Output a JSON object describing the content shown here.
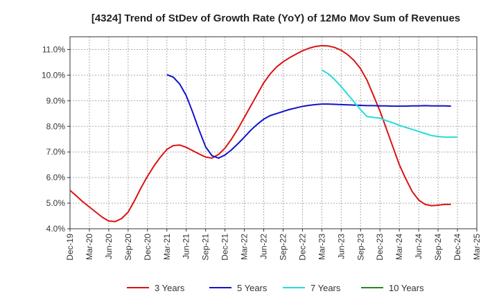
{
  "chart_data": {
    "type": "line",
    "title": "[4324]  Trend of StDev of Growth Rate (YoY) of 12Mo Mov Sum of Revenues",
    "xlabel": "",
    "ylabel": "",
    "ylim": [
      4.0,
      11.5
    ],
    "yticks": [
      4.0,
      5.0,
      6.0,
      7.0,
      8.0,
      9.0,
      10.0,
      11.0
    ],
    "ytick_labels": [
      "4.0%",
      "5.0%",
      "6.0%",
      "7.0%",
      "8.0%",
      "9.0%",
      "10.0%",
      "11.0%"
    ],
    "x_months": [
      "Dec-19",
      "Jan-20",
      "Feb-20",
      "Mar-20",
      "Apr-20",
      "May-20",
      "Jun-20",
      "Jul-20",
      "Aug-20",
      "Sep-20",
      "Oct-20",
      "Nov-20",
      "Dec-20",
      "Jan-21",
      "Feb-21",
      "Mar-21",
      "Apr-21",
      "May-21",
      "Jun-21",
      "Jul-21",
      "Aug-21",
      "Sep-21",
      "Oct-21",
      "Nov-21",
      "Dec-21",
      "Jan-22",
      "Feb-22",
      "Mar-22",
      "Apr-22",
      "May-22",
      "Jun-22",
      "Jul-22",
      "Aug-22",
      "Sep-22",
      "Oct-22",
      "Nov-22",
      "Dec-22",
      "Jan-23",
      "Feb-23",
      "Mar-23",
      "Apr-23",
      "May-23",
      "Jun-23",
      "Jul-23",
      "Aug-23",
      "Sep-23",
      "Oct-23",
      "Nov-23",
      "Dec-23",
      "Jan-24",
      "Feb-24",
      "Mar-24",
      "Apr-24",
      "May-24",
      "Jun-24",
      "Jul-24",
      "Aug-24",
      "Sep-24",
      "Oct-24",
      "Nov-24",
      "Dec-24",
      "Jan-25",
      "Feb-25",
      "Mar-25"
    ],
    "xtick_labels": [
      "Dec-19",
      "Mar-20",
      "Jun-20",
      "Sep-20",
      "Dec-20",
      "Mar-21",
      "Jun-21",
      "Sep-21",
      "Dec-21",
      "Mar-22",
      "Jun-22",
      "Sep-22",
      "Dec-22",
      "Mar-23",
      "Jun-23",
      "Sep-23",
      "Dec-23",
      "Mar-24",
      "Jun-24",
      "Sep-24",
      "Dec-24",
      "Mar-25"
    ],
    "grid": true,
    "legend_position": "bottom",
    "series": [
      {
        "name": "3 Years",
        "color": "#dd1111",
        "start_index": 0,
        "values": [
          5.5,
          5.28,
          5.05,
          4.85,
          4.65,
          4.45,
          4.3,
          4.28,
          4.4,
          4.65,
          5.1,
          5.6,
          6.05,
          6.45,
          6.8,
          7.1,
          7.25,
          7.27,
          7.18,
          7.05,
          6.92,
          6.8,
          6.76,
          6.9,
          7.15,
          7.5,
          7.9,
          8.35,
          8.8,
          9.25,
          9.7,
          10.05,
          10.32,
          10.52,
          10.68,
          10.82,
          10.95,
          11.05,
          11.12,
          11.15,
          11.14,
          11.08,
          10.97,
          10.8,
          10.57,
          10.25,
          9.8,
          9.2,
          8.6,
          7.9,
          7.2,
          6.5,
          5.95,
          5.45,
          5.12,
          4.95,
          4.9,
          4.92,
          4.95,
          4.95
        ]
      },
      {
        "name": "5 Years",
        "color": "#1111cc",
        "start_index": 15,
        "values": [
          10.02,
          9.92,
          9.65,
          9.2,
          8.55,
          7.85,
          7.2,
          6.85,
          6.76,
          6.88,
          7.08,
          7.32,
          7.58,
          7.85,
          8.08,
          8.28,
          8.42,
          8.5,
          8.58,
          8.66,
          8.72,
          8.78,
          8.82,
          8.85,
          8.87,
          8.87,
          8.86,
          8.85,
          8.84,
          8.83,
          8.82,
          8.81,
          8.81,
          8.8,
          8.8,
          8.79,
          8.79,
          8.79,
          8.8,
          8.8,
          8.81,
          8.8,
          8.8,
          8.8,
          8.79
        ]
      },
      {
        "name": "7 Years",
        "color": "#22dddd",
        "start_index": 39,
        "values": [
          10.2,
          10.05,
          9.82,
          9.55,
          9.25,
          8.95,
          8.65,
          8.38,
          8.35,
          8.32,
          8.22,
          8.14,
          8.04,
          7.96,
          7.88,
          7.8,
          7.72,
          7.64,
          7.6,
          7.58,
          7.58,
          7.58
        ]
      },
      {
        "name": "10 Years",
        "color": "#228822",
        "start_index": 0,
        "values": []
      }
    ]
  }
}
